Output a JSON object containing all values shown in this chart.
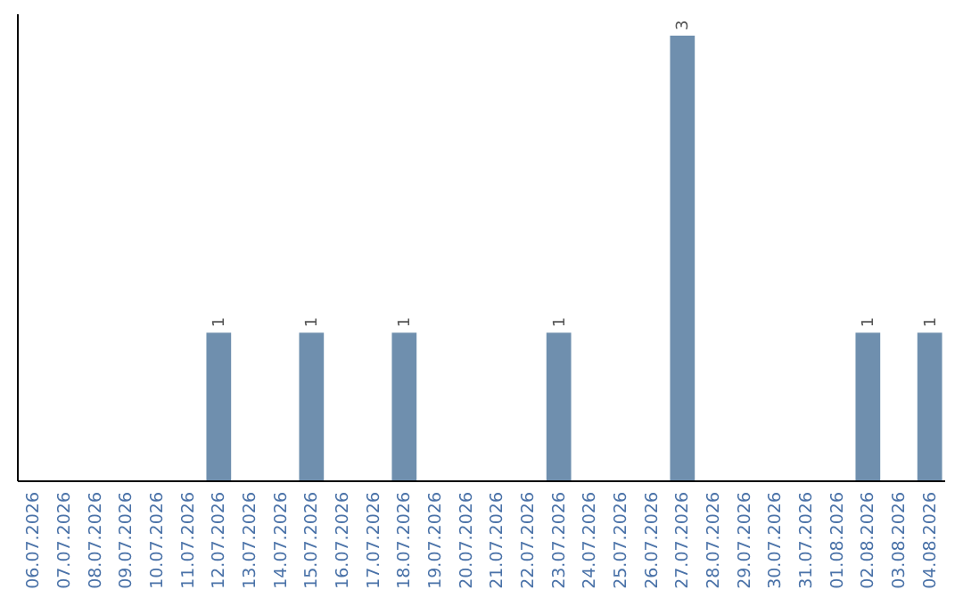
{
  "chart_data": {
    "type": "bar",
    "categories": [
      "06.07.2026",
      "07.07.2026",
      "08.07.2026",
      "09.07.2026",
      "10.07.2026",
      "11.07.2026",
      "12.07.2026",
      "13.07.2026",
      "14.07.2026",
      "15.07.2026",
      "16.07.2026",
      "17.07.2026",
      "18.07.2026",
      "19.07.2026",
      "20.07.2026",
      "21.07.2026",
      "22.07.2026",
      "23.07.2026",
      "24.07.2026",
      "25.07.2026",
      "26.07.2026",
      "27.07.2026",
      "28.07.2026",
      "29.07.2026",
      "30.07.2026",
      "31.07.2026",
      "01.08.2026",
      "02.08.2026",
      "03.08.2026",
      "04.08.2026"
    ],
    "values": [
      0,
      0,
      0,
      0,
      0,
      0,
      1,
      0,
      0,
      1,
      0,
      0,
      1,
      0,
      0,
      0,
      0,
      1,
      0,
      0,
      0,
      3,
      0,
      0,
      0,
      0,
      0,
      1,
      0,
      1
    ],
    "value_labels": [
      null,
      null,
      null,
      null,
      null,
      null,
      "1",
      null,
      null,
      "1",
      null,
      null,
      "1",
      null,
      null,
      null,
      null,
      "1",
      null,
      null,
      null,
      "3",
      null,
      null,
      null,
      null,
      null,
      "1",
      null,
      "1"
    ],
    "color": "#6f8fae"
  }
}
